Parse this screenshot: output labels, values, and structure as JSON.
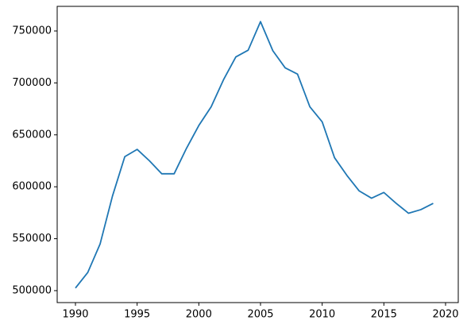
{
  "chart_data": {
    "type": "line",
    "x": [
      1990,
      1991,
      1992,
      1993,
      1994,
      1995,
      1996,
      1997,
      1998,
      1999,
      2000,
      2001,
      2002,
      2003,
      2004,
      2005,
      2006,
      2007,
      2008,
      2009,
      2010,
      2011,
      2012,
      2013,
      2014,
      2015,
      2016,
      2017,
      2018,
      2019
    ],
    "series": [
      {
        "color": "#1f77b4",
        "values": [
          502500,
          517500,
          545000,
          591000,
          629000,
          636000,
          625000,
          612500,
          612500,
          637000,
          659000,
          677000,
          703000,
          725000,
          731500,
          759000,
          731000,
          714500,
          708500,
          677000,
          662500,
          628000,
          611000,
          596000,
          589000,
          594500,
          584000,
          574500,
          578000,
          584000
        ]
      }
    ],
    "xlim": [
      1988.52,
      2021.03
    ],
    "xticks": [
      1990,
      1995,
      2000,
      2005,
      2010,
      2015,
      2020
    ],
    "ylim": [
      488500,
      773700
    ],
    "yticks": [
      500000,
      550000,
      600000,
      650000,
      700000,
      750000
    ],
    "grid": false
  }
}
